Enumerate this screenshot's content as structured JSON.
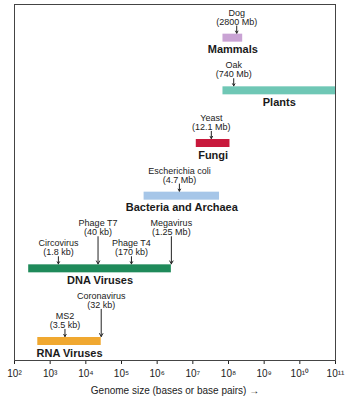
{
  "chart_data": {
    "type": "range_bar",
    "orientation": "horizontal",
    "log": "x",
    "grid": false,
    "tick_labels": "x",
    "xlabel": "Genome size (bases or base pairs)",
    "categories": [
      "Mammals",
      "Plants",
      "Fungi",
      "Bacteria and Archaea",
      "DNA Viruses",
      "RNA Viruses"
    ],
    "start": [
      70000000,
      70000000,
      12500000,
      430000,
      250,
      450
    ],
    "end": [
      250000000,
      100000000000,
      110000000,
      56000000,
      2500000,
      27000
    ],
    "colors": [
      "#c9a3d4",
      "#6fc7b5",
      "#c8193c",
      "#a6c6e8",
      "#1f8a5a",
      "#f0a830"
    ],
    "xlim": [
      100,
      100000000000
    ],
    "xticks": [
      {
        "value": 100,
        "label": "10²"
      },
      {
        "value": 1000,
        "label": "10³"
      },
      {
        "value": 10000,
        "label": "10⁴"
      },
      {
        "value": 100000,
        "label": "10⁵"
      },
      {
        "value": 1000000,
        "label": "10⁶"
      },
      {
        "value": 10000000,
        "label": "10⁷"
      },
      {
        "value": 100000000,
        "label": "10⁸"
      },
      {
        "value": 1000000000,
        "label": "10⁹"
      },
      {
        "value": 10000000000,
        "label": "10¹⁰"
      },
      {
        "value": 100000000000,
        "label": "10¹¹"
      }
    ],
    "annotations": [
      {
        "category": "Mammals",
        "label": "Dog (2800 Mb)",
        "x": 170000000
      },
      {
        "category": "Plants",
        "label": "Oak (740 Mb)",
        "x": 140000000
      },
      {
        "category": "Fungi",
        "label": "Yeast (12.1 Mb)",
        "x": 33000000
      },
      {
        "category": "Bacteria and Archaea",
        "label": "Escherichia coli (4.7 Mb)",
        "x": 4200000
      },
      {
        "category": "DNA Viruses",
        "label": "Circovirus (1.8 kb)",
        "x": 1700
      },
      {
        "category": "DNA Viruses",
        "label": "Phage T7 (40 kb)",
        "x": 22000
      },
      {
        "category": "DNA Viruses",
        "label": "Phage T4 (170 kb)",
        "x": 190000
      },
      {
        "category": "DNA Viruses",
        "label": "Megavirus (1.25 Mb)",
        "x": 2500000
      },
      {
        "category": "RNA Viruses",
        "label": "MS2 (3.5 kb)",
        "x": 2600
      },
      {
        "category": "RNA Viruses",
        "label": "Coronavirus (32 kb)",
        "x": 27000
      }
    ]
  }
}
